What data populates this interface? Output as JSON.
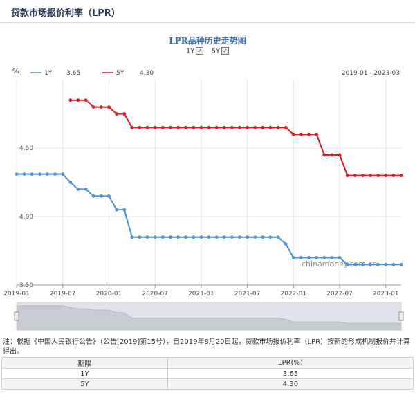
{
  "page": {
    "title": "贷款市场报价利率（LPR）",
    "chart_title": "LPR品种历史走势图",
    "toggles": [
      {
        "label": "1Y",
        "checked": true
      },
      {
        "label": "5Y",
        "checked": true
      }
    ],
    "note": "注：根据《中国人民银行公告》（公告[2019]第15号），自2019年8月20日起，贷款市场报价利率（LPR）按新的形成机制报价并计算得出。",
    "watermark": "chinamoney.com.cn",
    "checkmark": "✓"
  },
  "chart_data": {
    "type": "line",
    "ylabel": "%",
    "date_range_label": "2019-01 - 2023-03",
    "ylim": [
      3.5,
      5.0
    ],
    "yticks": [
      "3.50",
      "4.00",
      "4.50"
    ],
    "xlim": [
      "2019-01",
      "2023-03"
    ],
    "xticks": [
      "2019-01",
      "2019-07",
      "2020-01",
      "2020-07",
      "2021-01",
      "2021-07",
      "2022-01",
      "2022-07",
      "2023-01"
    ],
    "grid": true,
    "legend_position": "top-left",
    "series": [
      {
        "name": "1Y",
        "latest": "3.65",
        "color": "#4a90e2",
        "points": [
          [
            "2019-01",
            4.31
          ],
          [
            "2019-02",
            4.31
          ],
          [
            "2019-03",
            4.31
          ],
          [
            "2019-04",
            4.31
          ],
          [
            "2019-05",
            4.31
          ],
          [
            "2019-06",
            4.31
          ],
          [
            "2019-07",
            4.31
          ],
          [
            "2019-08",
            4.25
          ],
          [
            "2019-09",
            4.2
          ],
          [
            "2019-10",
            4.2
          ],
          [
            "2019-11",
            4.15
          ],
          [
            "2019-12",
            4.15
          ],
          [
            "2020-01",
            4.15
          ],
          [
            "2020-02",
            4.05
          ],
          [
            "2020-03",
            4.05
          ],
          [
            "2020-04",
            3.85
          ],
          [
            "2020-05",
            3.85
          ],
          [
            "2020-06",
            3.85
          ],
          [
            "2020-07",
            3.85
          ],
          [
            "2020-08",
            3.85
          ],
          [
            "2020-09",
            3.85
          ],
          [
            "2020-10",
            3.85
          ],
          [
            "2020-11",
            3.85
          ],
          [
            "2020-12",
            3.85
          ],
          [
            "2021-01",
            3.85
          ],
          [
            "2021-02",
            3.85
          ],
          [
            "2021-03",
            3.85
          ],
          [
            "2021-04",
            3.85
          ],
          [
            "2021-05",
            3.85
          ],
          [
            "2021-06",
            3.85
          ],
          [
            "2021-07",
            3.85
          ],
          [
            "2021-08",
            3.85
          ],
          [
            "2021-09",
            3.85
          ],
          [
            "2021-10",
            3.85
          ],
          [
            "2021-11",
            3.85
          ],
          [
            "2021-12",
            3.8
          ],
          [
            "2022-01",
            3.7
          ],
          [
            "2022-02",
            3.7
          ],
          [
            "2022-03",
            3.7
          ],
          [
            "2022-04",
            3.7
          ],
          [
            "2022-05",
            3.7
          ],
          [
            "2022-06",
            3.7
          ],
          [
            "2022-07",
            3.7
          ],
          [
            "2022-08",
            3.65
          ],
          [
            "2022-09",
            3.65
          ],
          [
            "2022-10",
            3.65
          ],
          [
            "2022-11",
            3.65
          ],
          [
            "2022-12",
            3.65
          ],
          [
            "2023-01",
            3.65
          ],
          [
            "2023-02",
            3.65
          ],
          [
            "2023-03",
            3.65
          ]
        ]
      },
      {
        "name": "5Y",
        "latest": "4.30",
        "color": "#e8141b",
        "points": [
          [
            "2019-08",
            4.85
          ],
          [
            "2019-09",
            4.85
          ],
          [
            "2019-10",
            4.85
          ],
          [
            "2019-11",
            4.8
          ],
          [
            "2019-12",
            4.8
          ],
          [
            "2020-01",
            4.8
          ],
          [
            "2020-02",
            4.75
          ],
          [
            "2020-03",
            4.75
          ],
          [
            "2020-04",
            4.65
          ],
          [
            "2020-05",
            4.65
          ],
          [
            "2020-06",
            4.65
          ],
          [
            "2020-07",
            4.65
          ],
          [
            "2020-08",
            4.65
          ],
          [
            "2020-09",
            4.65
          ],
          [
            "2020-10",
            4.65
          ],
          [
            "2020-11",
            4.65
          ],
          [
            "2020-12",
            4.65
          ],
          [
            "2021-01",
            4.65
          ],
          [
            "2021-02",
            4.65
          ],
          [
            "2021-03",
            4.65
          ],
          [
            "2021-04",
            4.65
          ],
          [
            "2021-05",
            4.65
          ],
          [
            "2021-06",
            4.65
          ],
          [
            "2021-07",
            4.65
          ],
          [
            "2021-08",
            4.65
          ],
          [
            "2021-09",
            4.65
          ],
          [
            "2021-10",
            4.65
          ],
          [
            "2021-11",
            4.65
          ],
          [
            "2021-12",
            4.65
          ],
          [
            "2022-01",
            4.6
          ],
          [
            "2022-02",
            4.6
          ],
          [
            "2022-03",
            4.6
          ],
          [
            "2022-04",
            4.6
          ],
          [
            "2022-05",
            4.45
          ],
          [
            "2022-06",
            4.45
          ],
          [
            "2022-07",
            4.45
          ],
          [
            "2022-08",
            4.3
          ],
          [
            "2022-09",
            4.3
          ],
          [
            "2022-10",
            4.3
          ],
          [
            "2022-11",
            4.3
          ],
          [
            "2022-12",
            4.3
          ],
          [
            "2023-01",
            4.3
          ],
          [
            "2023-02",
            4.3
          ],
          [
            "2023-03",
            4.3
          ]
        ]
      }
    ]
  },
  "table": {
    "headers": [
      "期限",
      "LPR(%)"
    ],
    "rows": [
      [
        "1Y",
        "3.65"
      ],
      [
        "5Y",
        "4.30"
      ]
    ]
  }
}
